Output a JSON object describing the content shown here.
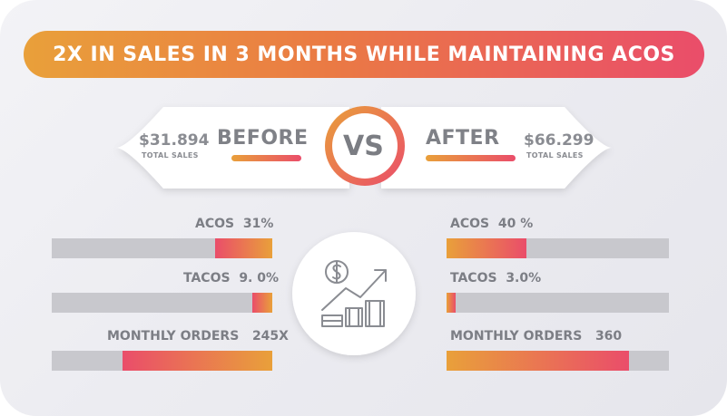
{
  "banner": {
    "title": "2X IN SALES IN 3 MONTHS WHILE MAINTAINING ACOS"
  },
  "before": {
    "amount": "$31.894",
    "caption": "TOTAL SALES",
    "label": "BEFORE"
  },
  "vs": "VS",
  "after": {
    "label": "AFTER",
    "amount": "$66.299",
    "caption": "TOTAL SALES"
  },
  "icon": "sales-growth-chart-icon",
  "colors": {
    "orange": "#e9a03a",
    "pink": "#ea4d6a",
    "track": "#c8c8cd",
    "text": "#7c7e85"
  },
  "metrics_before": [
    {
      "name": "ACOS",
      "value": "31%",
      "fill_pct": 26
    },
    {
      "name": "TACOS",
      "value": "9. 0%",
      "fill_pct": 9
    },
    {
      "name": "MONTHLY ORDERS",
      "value": "245X",
      "fill_pct": 68
    }
  ],
  "metrics_after": [
    {
      "name": "ACOS",
      "value": "40 %",
      "fill_pct": 36
    },
    {
      "name": "TACOS",
      "value": "3.0%",
      "fill_pct": 4
    },
    {
      "name": "MONTHLY ORDERS",
      "value": "360",
      "fill_pct": 82
    }
  ]
}
